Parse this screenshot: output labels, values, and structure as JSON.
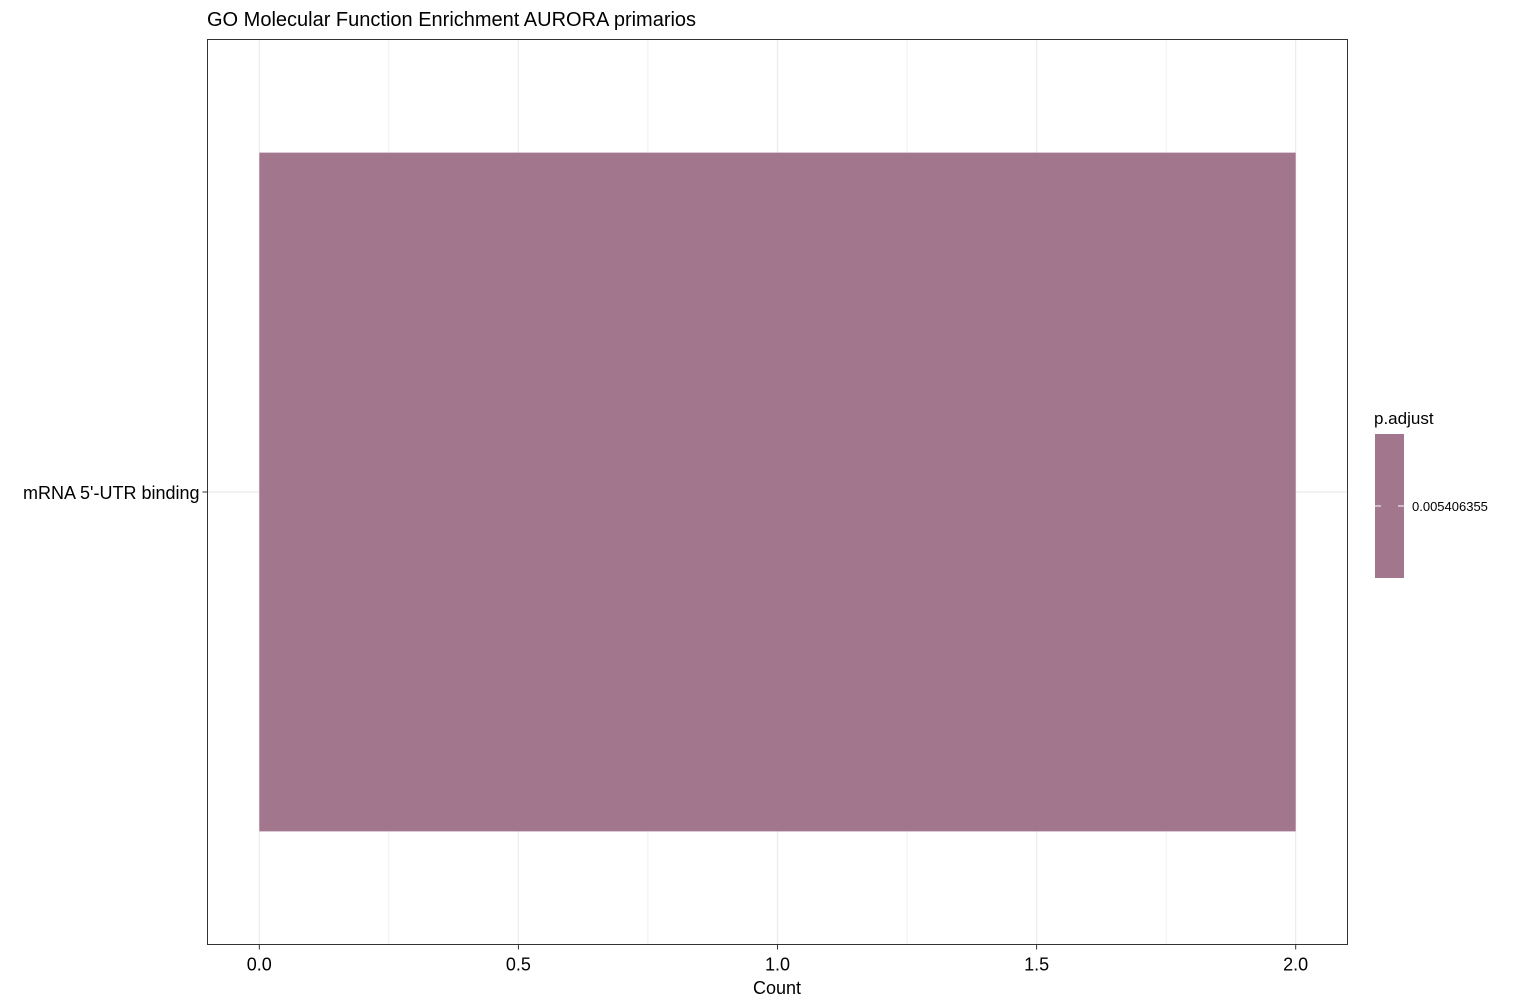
{
  "chart_data": {
    "type": "bar",
    "orientation": "horizontal",
    "title": "GO Molecular Function Enrichment AURORA primarios",
    "xlabel": "Count",
    "ylabel": "",
    "categories": [
      "mRNA 5'-UTR binding"
    ],
    "series": [
      {
        "values": [
          2.0
        ]
      }
    ],
    "p_adjust": [
      0.005406355
    ],
    "xlim": [
      -0.1,
      2.1
    ],
    "xticks": [
      "0.0",
      "0.5",
      "1.0",
      "1.5",
      "2.0"
    ],
    "xtick_values": [
      0,
      0.5,
      1.0,
      1.5,
      2.0
    ],
    "grid": true,
    "legend": {
      "title": "p.adjust",
      "placement": "right",
      "labels": [
        "0.005406355"
      ],
      "color": "#A2768D"
    },
    "colors": {
      "bar": "#A2768D",
      "grid": "#EBEBEB",
      "panel_border": "#333333"
    }
  }
}
